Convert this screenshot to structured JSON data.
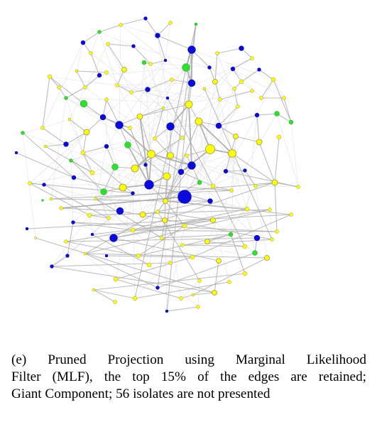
{
  "figure": {
    "caption_lines": [
      "(e) Pruned Projection using Marginal Likelihood",
      "Filter (MLF), the top 15% of the edges are retained;",
      "Giant Component; 56 isolates are not presented"
    ]
  },
  "colors": {
    "blue": "#0a0adc",
    "yellow": "#ffff0a",
    "green": "#2de02d",
    "stroke": "#9a9a3a",
    "edge_strong": "#a8a8a8",
    "edge_faint": "#e2e2e2"
  }
}
